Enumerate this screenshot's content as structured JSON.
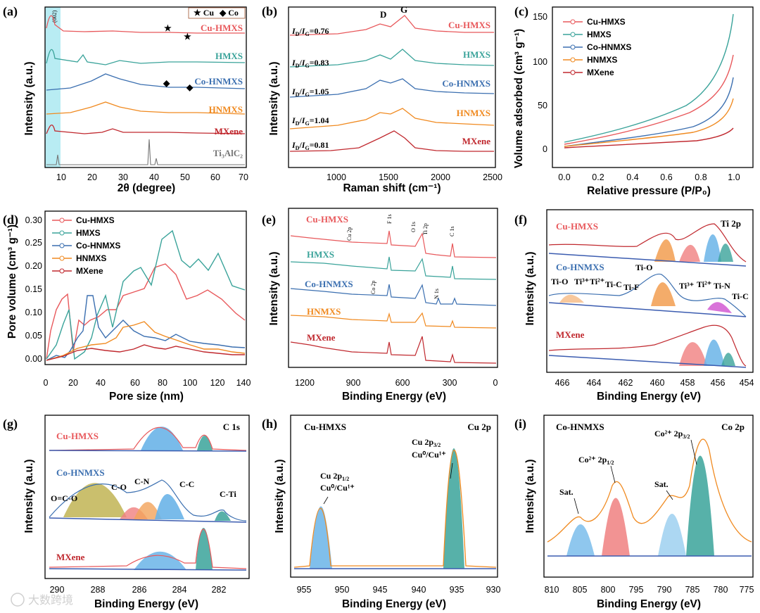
{
  "colors": {
    "cu": "#e8585b",
    "h": "#3aa39a",
    "co": "#3b6fb0",
    "hn": "#f08a20",
    "mx": "#c0282e",
    "ref": "#777777"
  },
  "a": {
    "label": "(a)",
    "ylabel": "Intensity (a.u.)",
    "xlabel": "2θ (degree)",
    "xticks": [
      "10",
      "20",
      "30",
      "40",
      "50",
      "60",
      "70"
    ],
    "peak": "(002)",
    "legend_cu": "★ Cu",
    "legend_co": "◆ Co",
    "series": [
      "Cu-HMXS",
      "HMXS",
      "Co-HNMXS",
      "HNMXS",
      "MXene"
    ],
    "ref": "Ti₃AlC₂"
  },
  "b": {
    "label": "(b)",
    "ylabel": "Intensity (a.u.)",
    "xlabel": "Raman shift (cm⁻¹)",
    "xticks": [
      "1000",
      "1500",
      "2000",
      "2500"
    ],
    "bands": [
      "D",
      "G"
    ],
    "ratios": [
      "=0.76",
      "=0.83",
      "=1.05",
      "=1.04",
      "=0.81"
    ],
    "series": [
      "Cu-HMXS",
      "HMXS",
      "Co-HNMXS",
      "HNMXS",
      "MXene"
    ]
  },
  "c": {
    "label": "(c)",
    "ylabel": "Volume adsorbed (cm³ g⁻¹)",
    "xlabel": "Relative pressure (P/P₀)",
    "xticks": [
      "0.0",
      "0.2",
      "0.4",
      "0.6",
      "0.8",
      "1.0"
    ],
    "yticks": [
      "0",
      "50",
      "100",
      "150"
    ],
    "legend": [
      "Cu-HMXS",
      "HMXS",
      "Co-HNMXS",
      "HNMXS",
      "MXene"
    ]
  },
  "d": {
    "label": "(d)",
    "ylabel": "Pore volume (cm³ g⁻¹)",
    "xlabel": "Pore size (nm)",
    "xticks": [
      "0",
      "20",
      "40",
      "60",
      "80",
      "100",
      "120",
      "140"
    ],
    "yticks": [
      "0.00",
      "0.05",
      "0.10",
      "0.15",
      "0.20",
      "0.25",
      "0.30"
    ],
    "legend": [
      "Cu-HMXS",
      "HMXS",
      "Co-HNMXS",
      "HNMXS",
      "MXene"
    ]
  },
  "e": {
    "label": "(e)",
    "ylabel": "Intensity (a.u.)",
    "xlabel": "Binding Energy (eV)",
    "xticks": [
      "1200",
      "900",
      "600",
      "300",
      "0"
    ],
    "peaks": [
      "Cu 2p",
      "F 1s",
      "O 1s",
      "Ti 2p",
      "C 1s",
      "Co 2p",
      "N 1s"
    ],
    "series": [
      "Cu-HMXS",
      "HMXS",
      "Co-HNMXS",
      "HNMXS",
      "MXene"
    ]
  },
  "f": {
    "label": "(f)",
    "ylabel": "Intensity (a.u.)",
    "xlabel": "Binding Energy (eV)",
    "title": "Ti 2p",
    "xticks": [
      "466",
      "464",
      "462",
      "460",
      "458",
      "456",
      "454"
    ],
    "series": [
      "Cu-HMXS",
      "Co-HNMXS",
      "MXene"
    ],
    "components": [
      "Ti-O",
      "Ti³⁺",
      "Ti²⁺",
      "Ti-C",
      "Ti-F",
      "Ti-O",
      "Ti³⁺",
      "Ti²⁺",
      "Ti-N",
      "Ti-C"
    ]
  },
  "g": {
    "label": "(g)",
    "ylabel": "Intensity (a.u.)",
    "xlabel": "Binding Energy (eV)",
    "title": "C 1s",
    "xticks": [
      "290",
      "288",
      "286",
      "284",
      "282"
    ],
    "series": [
      "Cu-HMXS",
      "Co-HNMXS",
      "MXene"
    ],
    "components": [
      "O=C-O",
      "C-O",
      "C-N",
      "C-C",
      "C-Ti"
    ]
  },
  "h": {
    "label": "(h)",
    "ylabel": "Intensity (a.u.)",
    "xlabel": "Binding Energy (eV)",
    "title": "Cu 2p",
    "sample": "Cu-HMXS",
    "xticks": [
      "955",
      "950",
      "945",
      "940",
      "935",
      "930"
    ],
    "peak1": "Cu 2p",
    "peak1_sub": "1/2",
    "peak1_b": "Cu⁰/Cu¹⁺",
    "peak2": "Cu 2p",
    "peak2_sub": "3/2",
    "peak2_b": "Cu⁰/Cu¹⁺"
  },
  "i": {
    "label": "(i)",
    "ylabel": "Intensity (a.u.)",
    "xlabel": "Binding Energy (eV)",
    "title": "Co 2p",
    "sample": "Co-HNMXS",
    "xticks": [
      "810",
      "805",
      "800",
      "795",
      "790",
      "785",
      "780",
      "775"
    ],
    "peaks": [
      "Sat.",
      "Co²⁺ 2p",
      "Sat.",
      "Co²⁺ 2p"
    ],
    "subs": [
      "1/2",
      "3/2"
    ]
  },
  "watermark": "大数跨境"
}
